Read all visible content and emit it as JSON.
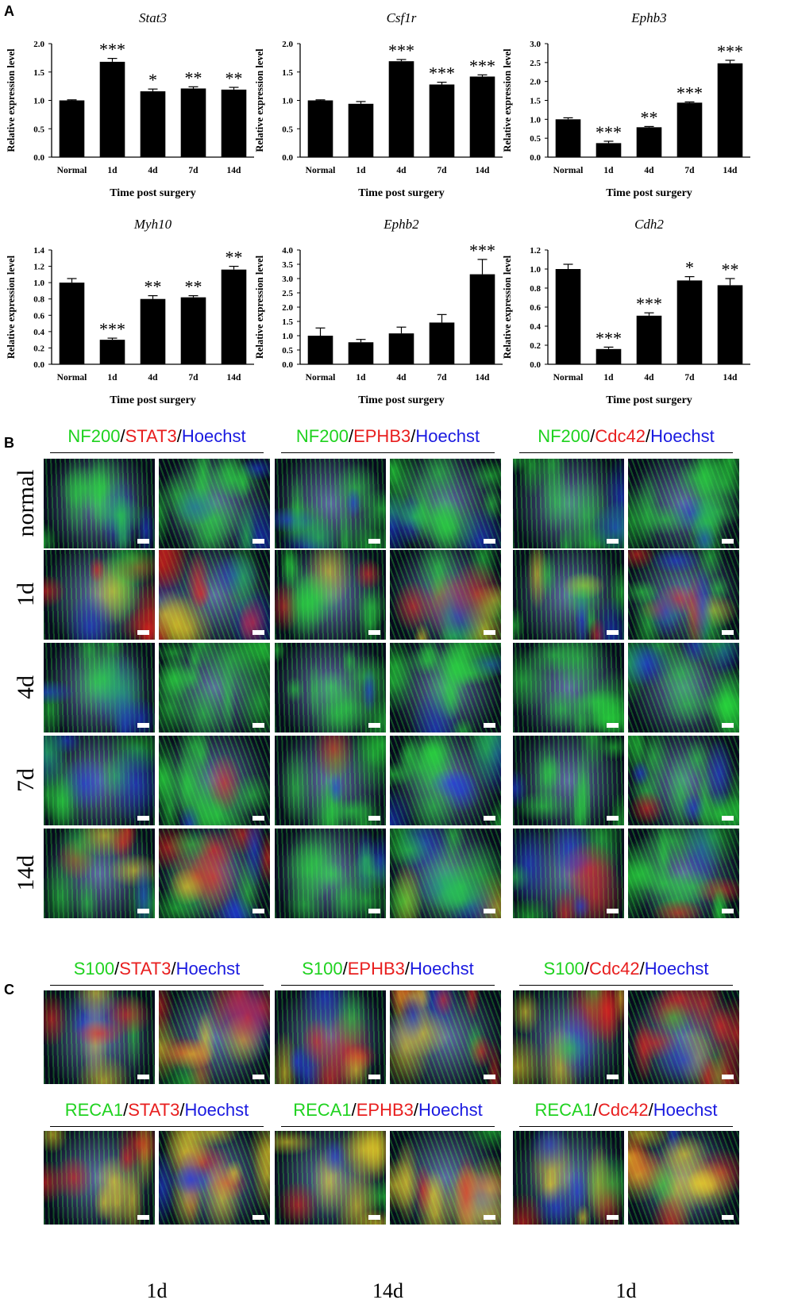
{
  "panel_labels": [
    "A",
    "B",
    "C"
  ],
  "chart_data": [
    {
      "type": "bar",
      "title": "Stat3",
      "ylabel": "Relative expression level",
      "xlabel": "Time post surgery",
      "categories": [
        "Normal",
        "1d",
        "4d",
        "7d",
        "14d"
      ],
      "values": [
        1.0,
        1.68,
        1.16,
        1.21,
        1.19
      ],
      "errors": [
        0.01,
        0.06,
        0.04,
        0.03,
        0.04
      ],
      "significance": [
        "",
        "***",
        "*",
        "**",
        "**"
      ],
      "ylim": [
        0,
        2.0
      ],
      "yticks": [
        "0.0",
        "0.5",
        "1.0",
        "1.5",
        "2.0"
      ]
    },
    {
      "type": "bar",
      "title": "Csf1r",
      "ylabel": "Relative expression level",
      "xlabel": "Time post surgery",
      "categories": [
        "Normal",
        "1d",
        "4d",
        "7d",
        "14d"
      ],
      "values": [
        1.0,
        0.94,
        1.69,
        1.28,
        1.42
      ],
      "errors": [
        0.01,
        0.04,
        0.03,
        0.04,
        0.03
      ],
      "significance": [
        "",
        "",
        "***",
        "***",
        "***"
      ],
      "ylim": [
        0,
        2.0
      ],
      "yticks": [
        "0.0",
        "0.5",
        "1.0",
        "1.5",
        "2.0"
      ]
    },
    {
      "type": "bar",
      "title": "Ephb3",
      "ylabel": "Relative expression level",
      "xlabel": "Time post surgery",
      "categories": [
        "Normal",
        "1d",
        "4d",
        "7d",
        "14d"
      ],
      "values": [
        1.0,
        0.37,
        0.79,
        1.44,
        2.48
      ],
      "errors": [
        0.04,
        0.05,
        0.02,
        0.02,
        0.08
      ],
      "significance": [
        "",
        "***",
        "**",
        "***",
        "***"
      ],
      "ylim": [
        0,
        3.0
      ],
      "yticks": [
        "0.0",
        "0.5",
        "1.0",
        "1.5",
        "2.0",
        "2.5",
        "3.0"
      ]
    },
    {
      "type": "bar",
      "title": "Myh10",
      "ylabel": "Relative expression level",
      "xlabel": "Time post surgery",
      "categories": [
        "Normal",
        "1d",
        "4d",
        "7d",
        "14d"
      ],
      "values": [
        1.0,
        0.3,
        0.8,
        0.82,
        1.16
      ],
      "errors": [
        0.05,
        0.02,
        0.04,
        0.02,
        0.04
      ],
      "significance": [
        "",
        "***",
        "**",
        "**",
        "**"
      ],
      "ylim": [
        0,
        1.4
      ],
      "yticks": [
        "0.0",
        "0.2",
        "0.4",
        "0.6",
        "0.8",
        "1.0",
        "1.2",
        "1.4"
      ]
    },
    {
      "type": "bar",
      "title": "Ephb2",
      "ylabel": "Relative expression level",
      "xlabel": "Time post surgery",
      "categories": [
        "Normal",
        "1d",
        "4d",
        "7d",
        "14d"
      ],
      "values": [
        1.0,
        0.77,
        1.08,
        1.46,
        3.15
      ],
      "errors": [
        0.27,
        0.1,
        0.22,
        0.28,
        0.52
      ],
      "significance": [
        "",
        "",
        "",
        "",
        "***"
      ],
      "ylim": [
        0,
        4.0
      ],
      "yticks": [
        "0.0",
        "0.5",
        "1.0",
        "1.5",
        "2.0",
        "2.5",
        "3.0",
        "3.5",
        "4.0"
      ]
    },
    {
      "type": "bar",
      "title": "Cdh2",
      "ylabel": "Relative expression level",
      "xlabel": "Time post surgery",
      "categories": [
        "Normal",
        "1d",
        "4d",
        "7d",
        "14d"
      ],
      "values": [
        1.0,
        0.16,
        0.51,
        0.88,
        0.83
      ],
      "errors": [
        0.05,
        0.02,
        0.03,
        0.04,
        0.07
      ],
      "significance": [
        "",
        "***",
        "***",
        "*",
        "**"
      ],
      "ylim": [
        0,
        1.2
      ],
      "yticks": [
        "0.0",
        "0.2",
        "0.4",
        "0.6",
        "0.8",
        "1.0",
        "1.2"
      ]
    }
  ],
  "panel_b": {
    "titles": [
      {
        "marker": "NF200",
        "sep1": "/",
        "target": "STAT3",
        "sep2": "/",
        "stain": "Hoechst"
      },
      {
        "marker": "NF200",
        "sep1": "/",
        "target": "EPHB3",
        "sep2": "/",
        "stain": "Hoechst"
      },
      {
        "marker": "NF200",
        "sep1": "/",
        "target": "Cdc42",
        "sep2": "/",
        "stain": "Hoechst"
      }
    ],
    "rows": [
      "normal",
      "1d",
      "4d",
      "7d",
      "14d"
    ]
  },
  "panel_c": {
    "titles_top": [
      {
        "marker": "S100",
        "sep1": "/",
        "target": "STAT3",
        "sep2": "/",
        "stain": "Hoechst"
      },
      {
        "marker": "S100",
        "sep1": "/",
        "target": "EPHB3",
        "sep2": "/",
        "stain": "Hoechst"
      },
      {
        "marker": "S100",
        "sep1": "/",
        "target": "Cdc42",
        "sep2": "/",
        "stain": "Hoechst"
      }
    ],
    "titles_bottom": [
      {
        "marker": "RECA1",
        "sep1": "/",
        "target": "STAT3",
        "sep2": "/",
        "stain": "Hoechst"
      },
      {
        "marker": "RECA1",
        "sep1": "/",
        "target": "EPHB3",
        "sep2": "/",
        "stain": "Hoechst"
      },
      {
        "marker": "RECA1",
        "sep1": "/",
        "target": "Cdc42",
        "sep2": "/",
        "stain": "Hoechst"
      }
    ],
    "bottom_labels": [
      "1d",
      "14d",
      "1d"
    ]
  }
}
